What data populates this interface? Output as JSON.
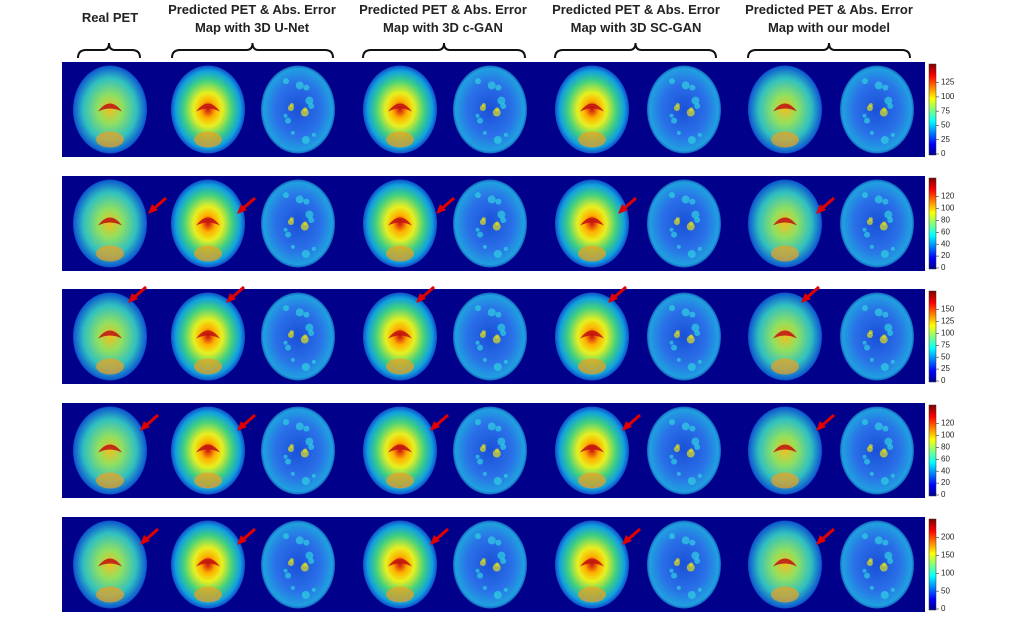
{
  "columns": [
    {
      "lines": [
        "Real PET"
      ]
    },
    {
      "lines": [
        "Predicted PET & Abs. Error",
        "Map with 3D U-Net"
      ]
    },
    {
      "lines": [
        "Predicted PET & Abs. Error",
        "Map with 3D c-GAN"
      ]
    },
    {
      "lines": [
        "Predicted PET & Abs. Error",
        "Map with 3D SC-GAN"
      ]
    },
    {
      "lines": [
        "Predicted PET & Abs. Error",
        "Map with our model"
      ]
    }
  ],
  "rows": [
    {
      "colorbar_ticks": [
        0,
        25,
        50,
        75,
        100,
        125
      ]
    },
    {
      "colorbar_ticks": [
        0,
        20,
        40,
        60,
        80,
        100,
        120
      ]
    },
    {
      "colorbar_ticks": [
        0,
        25,
        50,
        75,
        100,
        125,
        150
      ]
    },
    {
      "colorbar_ticks": [
        0,
        20,
        40,
        60,
        80,
        100,
        120
      ]
    },
    {
      "colorbar_ticks": [
        0,
        50,
        100,
        150,
        200
      ]
    }
  ]
}
